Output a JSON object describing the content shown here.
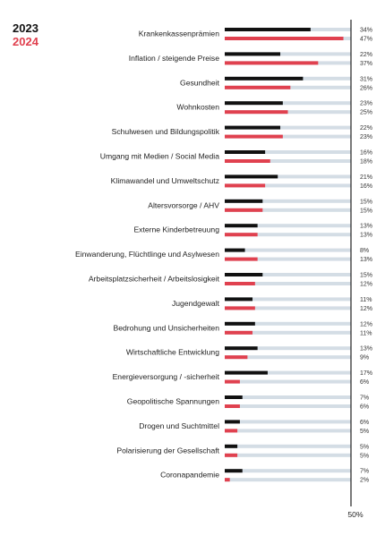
{
  "chart_data": {
    "type": "bar",
    "orientation": "horizontal",
    "xlim": [
      0,
      50
    ],
    "axis_end_label": "50%",
    "grid": false,
    "legend_position": "top-left",
    "categories": [
      "Krankenkassenprämien",
      "Inflation / steigende Preise",
      "Gesundheit",
      "Wohnkosten",
      "Schulwesen und Bildungspolitik",
      "Umgang mit Medien / Social Media",
      "Klimawandel und Umweltschutz",
      "Altersvorsorge / AHV",
      "Externe Kinderbetreuung",
      "Einwanderung, Flüchtlinge und Asylwesen",
      "Arbeitsplatzsicherheit / Arbeitslosigkeit",
      "Jugendgewalt",
      "Bedrohung und Unsicherheiten",
      "Wirtschaftliche Entwicklung",
      "Energieversorgung / -sicherheit",
      "Geopolitische Spannungen",
      "Drogen und Suchtmittel",
      "Polarisierung der Gesellschaft",
      "Coronapandemie"
    ],
    "series": [
      {
        "name": "2023",
        "color": "#111111",
        "values": [
          34,
          22,
          31,
          23,
          22,
          16,
          21,
          15,
          13,
          8,
          15,
          11,
          12,
          13,
          17,
          7,
          6,
          5,
          7
        ],
        "labels": [
          "34%",
          "22%",
          "31%",
          "23%",
          "22%",
          "16%",
          "21%",
          "15%",
          "13%",
          "8%",
          "15%",
          "11%",
          "12%",
          "13%",
          "17%",
          "7%",
          "6%",
          "5%",
          "7%"
        ]
      },
      {
        "name": "2024",
        "color": "#e0414f",
        "values": [
          47,
          37,
          26,
          25,
          23,
          18,
          16,
          15,
          13,
          13,
          12,
          12,
          11,
          9,
          6,
          6,
          5,
          5,
          2
        ],
        "labels": [
          "47%",
          "37%",
          "26%",
          "25%",
          "23%",
          "18%",
          "16%",
          "15%",
          "13%",
          "13%",
          "12%",
          "12%",
          "11%",
          "9%",
          "6%",
          "6%",
          "5%",
          "5%",
          "2%"
        ]
      }
    ],
    "track_color": "#d4dde5",
    "axis_color": "#222222"
  }
}
